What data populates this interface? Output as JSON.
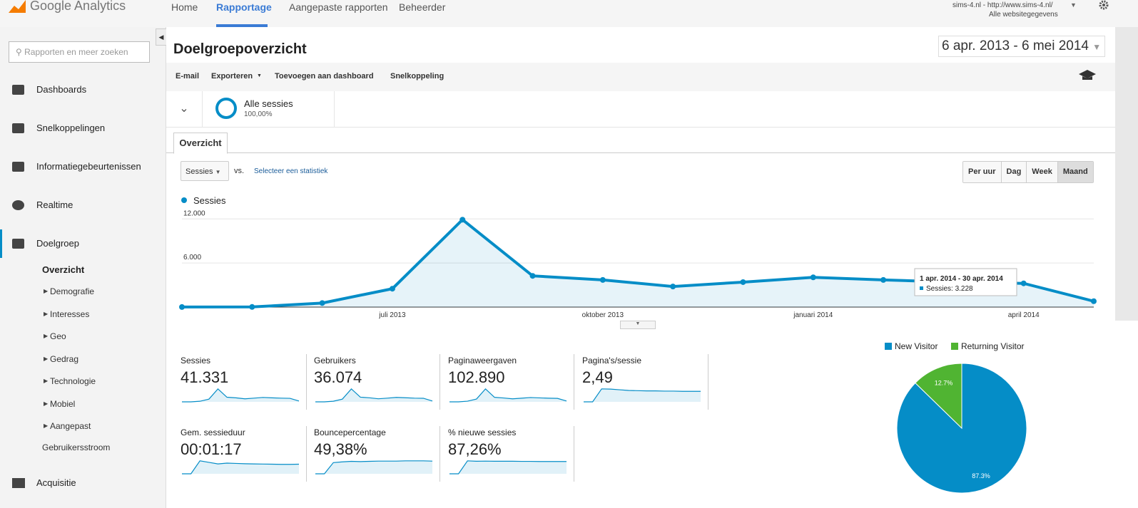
{
  "header": {
    "logo": "Google Analytics",
    "nav": [
      "Home",
      "Rapportage",
      "Aangepaste rapporten",
      "Beheerder"
    ],
    "account": "sims-4.nl - http://www.sims-4.nl/",
    "view": "Alle websitegegevens"
  },
  "sidebar": {
    "search_placeholder": "Rapporten en meer zoeken",
    "items": [
      "Dashboards",
      "Snelkoppelingen",
      "Informatiegebeurtenissen",
      "Realtime",
      "Doelgroep"
    ],
    "sub_active": "Overzicht",
    "subitems": [
      "Demografie",
      "Interesses",
      "Geo",
      "Gedrag",
      "Technologie",
      "Mobiel",
      "Aangepast"
    ],
    "sub_last": "Gebruikersstroom",
    "bottom": "Acquisitie"
  },
  "report": {
    "title": "Doelgroepoverzicht",
    "date_range": "6 apr. 2013 - 6 mei 2014",
    "actions": [
      "E-mail",
      "Exporteren",
      "Toevoegen aan dashboard",
      "Snelkoppeling"
    ],
    "segment": {
      "name": "Alle sessies",
      "share": "100,00%"
    },
    "tab": "Overzicht",
    "metric_select": "Sessies",
    "vs": "vs.",
    "select_stat": "Selecteer een statistiek",
    "granularity": [
      "Per uur",
      "Dag",
      "Week",
      "Maand"
    ]
  },
  "metrics": [
    {
      "name": "Sessies",
      "value": "41.331"
    },
    {
      "name": "Gebruikers",
      "value": "36.074",
      "trend": [
        10,
        20,
        500,
        2200,
        10500,
        3800,
        3300,
        2500,
        3000,
        3600,
        3300,
        3000,
        2900,
        700
      ]
    },
    {
      "name": "Paginaweergaven",
      "value": "102.890",
      "trend": [
        30,
        50,
        1500,
        6500,
        30000,
        10500,
        9000,
        7000,
        8500,
        10000,
        9200,
        8400,
        8000,
        2000
      ]
    },
    {
      "name": "Pagina's/sessie",
      "value": "2,49",
      "trend": [
        0,
        0,
        2.9,
        2.85,
        2.7,
        2.55,
        2.5,
        2.45,
        2.45,
        2.4,
        2.4,
        2.35,
        2.35,
        2.35
      ]
    },
    {
      "name": "Gem. sessieduur",
      "value": "00:01:17",
      "trend": [
        0,
        0,
        85,
        75,
        65,
        70,
        68,
        66,
        65,
        64,
        63,
        62,
        62,
        63
      ]
    },
    {
      "name": "Bouncepercentage",
      "value": "49,38%",
      "trend": [
        0,
        0,
        45,
        48,
        50,
        49,
        50,
        51,
        51,
        51,
        52,
        52,
        52,
        51
      ]
    },
    {
      "name": "% nieuwe sessies",
      "value": "87,26%",
      "trend": [
        0,
        0,
        95,
        92,
        93,
        92,
        92,
        92,
        91,
        91,
        90,
        90,
        90,
        90
      ]
    }
  ],
  "chart_data": [
    {
      "type": "line",
      "categories": [
        null,
        null,
        null,
        "juli 2013",
        null,
        null,
        "oktober 2013",
        null,
        null,
        "januari 2014",
        null,
        null,
        "april 2014",
        null
      ],
      "series": [
        {
          "name": "Sessies",
          "color": "#058dc7",
          "values": [
            10,
            20,
            550,
            2500,
            11900,
            4250,
            3700,
            2800,
            3400,
            4050,
            3700,
            3400,
            3228,
            800
          ]
        }
      ],
      "ylim": [
        0,
        13000
      ],
      "yticks": [
        {
          "value": 6000,
          "label": "6.000"
        },
        {
          "value": 12000,
          "label": "12.000"
        }
      ],
      "grid": true,
      "tooltip": {
        "title": "1 apr. 2014 - 30 apr. 2014",
        "label": "Sessies: 3.228"
      }
    },
    {
      "type": "pie",
      "categories": [
        "New Visitor",
        "Returning Visitor"
      ],
      "values": [
        87.3,
        12.7
      ],
      "value_labels": [
        "87.3%",
        "12.7%"
      ],
      "colors": [
        "#058dc7",
        "#50b432"
      ],
      "legend": "top"
    }
  ]
}
